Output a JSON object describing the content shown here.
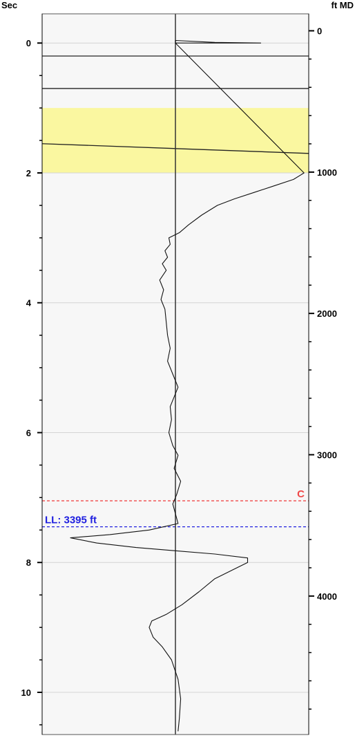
{
  "chart_data": {
    "type": "line",
    "left_axis": {
      "label": "Sec",
      "range": [
        -0.45,
        10.65
      ],
      "major_ticks": [
        0,
        2,
        4,
        6,
        8,
        10
      ],
      "minor_step": 0.5
    },
    "right_axis": {
      "label": "ft MD",
      "range": [
        -120,
        4980
      ],
      "major_ticks": [
        0,
        1000,
        2000,
        3000,
        4000
      ],
      "minor_step": 200
    },
    "gridlines": [
      0,
      2,
      4,
      6,
      8,
      10
    ],
    "center_line": 0,
    "x_range": [
      -1,
      1
    ],
    "highlight_band": {
      "from": 1.0,
      "to": 2.0,
      "color": "#faf7a0"
    },
    "bedding_lines": [
      {
        "depth": [
          0.2,
          0.2
        ]
      },
      {
        "depth": [
          0.7,
          0.7
        ]
      },
      {
        "depth": [
          1.55,
          1.7
        ]
      }
    ],
    "markers": [
      {
        "label": "C",
        "depth": 7.05,
        "color": "#f04848",
        "label_position": "right"
      },
      {
        "label": "LL: 3395 ft",
        "depth": 7.45,
        "color": "#2020e0",
        "label_position": "left"
      }
    ],
    "series": [
      {
        "name": "",
        "points": [
          [
            0.0,
            0.0
          ],
          [
            0.0,
            -0.04
          ],
          [
            0.3,
            -0.01
          ],
          [
            0.65,
            0.0
          ],
          [
            0.0,
            0.0
          ],
          [
            0.98,
            2.0
          ],
          [
            0.9,
            2.1
          ],
          [
            0.75,
            2.2
          ],
          [
            0.6,
            2.3
          ],
          [
            0.45,
            2.4
          ],
          [
            0.32,
            2.5
          ],
          [
            0.2,
            2.65
          ],
          [
            0.1,
            2.8
          ],
          [
            0.03,
            2.92
          ],
          [
            -0.05,
            3.0
          ],
          [
            -0.04,
            3.1
          ],
          [
            -0.08,
            3.2
          ],
          [
            -0.06,
            3.3
          ],
          [
            -0.1,
            3.4
          ],
          [
            -0.07,
            3.5
          ],
          [
            -0.12,
            3.65
          ],
          [
            -0.09,
            3.8
          ],
          [
            -0.11,
            3.95
          ],
          [
            -0.08,
            4.1
          ],
          [
            -0.07,
            4.3
          ],
          [
            -0.06,
            4.5
          ],
          [
            -0.04,
            4.7
          ],
          [
            -0.06,
            4.9
          ],
          [
            -0.02,
            5.1
          ],
          [
            0.02,
            5.3
          ],
          [
            -0.01,
            5.45
          ],
          [
            -0.04,
            5.6
          ],
          [
            -0.03,
            5.8
          ],
          [
            -0.05,
            6.0
          ],
          [
            -0.02,
            6.2
          ],
          [
            0.02,
            6.35
          ],
          [
            -0.01,
            6.55
          ],
          [
            0.04,
            6.75
          ],
          [
            0.01,
            6.95
          ],
          [
            -0.02,
            7.1
          ],
          [
            0.0,
            7.25
          ],
          [
            0.02,
            7.4
          ],
          [
            -0.2,
            7.5
          ],
          [
            -0.5,
            7.57
          ],
          [
            -0.8,
            7.62
          ],
          [
            -0.6,
            7.7
          ],
          [
            -0.3,
            7.77
          ],
          [
            0.0,
            7.82
          ],
          [
            0.3,
            7.87
          ],
          [
            0.55,
            7.93
          ],
          [
            0.55,
            8.0
          ],
          [
            0.45,
            8.1
          ],
          [
            0.3,
            8.25
          ],
          [
            0.18,
            8.45
          ],
          [
            0.05,
            8.65
          ],
          [
            -0.07,
            8.8
          ],
          [
            -0.18,
            8.9
          ],
          [
            -0.2,
            9.0
          ],
          [
            -0.17,
            9.15
          ],
          [
            -0.1,
            9.3
          ],
          [
            -0.03,
            9.5
          ],
          [
            0.02,
            9.8
          ],
          [
            0.04,
            10.1
          ],
          [
            0.03,
            10.4
          ],
          [
            0.02,
            10.6
          ]
        ]
      }
    ]
  }
}
